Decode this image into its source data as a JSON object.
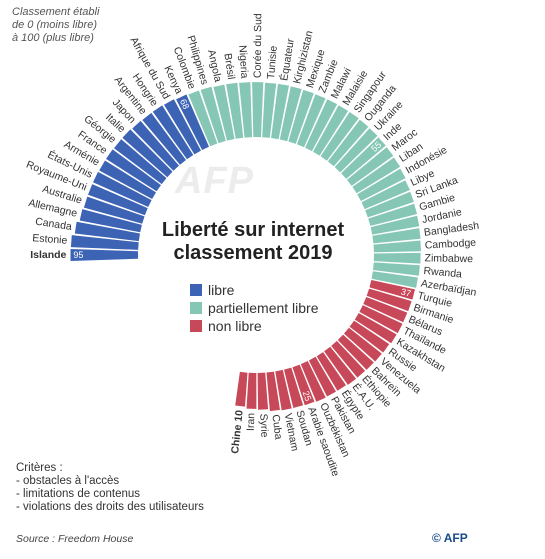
{
  "note": [
    "Classement établi",
    "de 0 (moins libre)",
    "à 100 (plus libre)"
  ],
  "chart_data": {
    "type": "bar",
    "layout": "radial",
    "title": "Liberté sur internet",
    "subtitle": "classement 2019",
    "ylim": [
      0,
      100
    ],
    "legend": [
      {
        "name": "libre",
        "color": "#3d63b5"
      },
      {
        "name": "partiellement libre",
        "color": "#85c7b4"
      },
      {
        "name": "non libre",
        "color": "#c74858"
      }
    ],
    "countries": [
      {
        "name": "Islande",
        "value": 95,
        "status": "libre",
        "label": "95",
        "bold": true
      },
      {
        "name": "Estonie",
        "value": 94,
        "status": "libre"
      },
      {
        "name": "Canada",
        "value": 87,
        "status": "libre"
      },
      {
        "name": "Allemagne",
        "value": 80,
        "status": "libre"
      },
      {
        "name": "Australie",
        "value": 77,
        "status": "libre"
      },
      {
        "name": "Royaume-Uni",
        "value": 77,
        "status": "libre"
      },
      {
        "name": "États-Unis",
        "value": 77,
        "status": "libre"
      },
      {
        "name": "Arménie",
        "value": 76,
        "status": "libre"
      },
      {
        "name": "France",
        "value": 76,
        "status": "libre"
      },
      {
        "name": "Géorgie",
        "value": 75,
        "status": "libre"
      },
      {
        "name": "Italie",
        "value": 75,
        "status": "libre"
      },
      {
        "name": "Japon",
        "value": 73,
        "status": "libre"
      },
      {
        "name": "Argentine",
        "value": 72,
        "status": "libre"
      },
      {
        "name": "Hongrie",
        "value": 72,
        "status": "libre"
      },
      {
        "name": "Afrique du Sud",
        "value": 71,
        "status": "libre"
      },
      {
        "name": "Kenya",
        "value": 68,
        "status": "libre",
        "label": "68"
      },
      {
        "name": "Colombie",
        "value": 66,
        "status": "partiellement libre"
      },
      {
        "name": "Philippines",
        "value": 66,
        "status": "partiellement libre"
      },
      {
        "name": "Angola",
        "value": 64,
        "status": "partiellement libre"
      },
      {
        "name": "Brésil",
        "value": 64,
        "status": "partiellement libre"
      },
      {
        "name": "Nigeria",
        "value": 63,
        "status": "partiellement libre"
      },
      {
        "name": "Corée du Sud",
        "value": 63,
        "status": "partiellement libre"
      },
      {
        "name": "Tunisie",
        "value": 62,
        "status": "partiellement libre"
      },
      {
        "name": "Équateur",
        "value": 62,
        "status": "partiellement libre"
      },
      {
        "name": "Kirghizistan",
        "value": 61,
        "status": "partiellement libre"
      },
      {
        "name": "Mexique",
        "value": 60,
        "status": "partiellement libre"
      },
      {
        "name": "Zambie",
        "value": 59,
        "status": "partiellement libre"
      },
      {
        "name": "Malawi",
        "value": 59,
        "status": "partiellement libre"
      },
      {
        "name": "Malaisie",
        "value": 58,
        "status": "partiellement libre"
      },
      {
        "name": "Singapour",
        "value": 58,
        "status": "partiellement libre"
      },
      {
        "name": "Ouganda",
        "value": 57,
        "status": "partiellement libre"
      },
      {
        "name": "Ukraine",
        "value": 56,
        "status": "partiellement libre"
      },
      {
        "name": "Inde",
        "value": 55,
        "status": "partiellement libre",
        "label": "55"
      },
      {
        "name": "Maroc",
        "value": 54,
        "status": "partiellement libre"
      },
      {
        "name": "Liban",
        "value": 53,
        "status": "partiellement libre"
      },
      {
        "name": "Indonésie",
        "value": 51,
        "status": "partiellement libre"
      },
      {
        "name": "Libye",
        "value": 48,
        "status": "partiellement libre"
      },
      {
        "name": "Sri Lanka",
        "value": 47,
        "status": "partiellement libre"
      },
      {
        "name": "Gambie",
        "value": 46,
        "status": "partiellement libre"
      },
      {
        "name": "Jordanie",
        "value": 45,
        "status": "partiellement libre"
      },
      {
        "name": "Bangladesh",
        "value": 44,
        "status": "partiellement libre"
      },
      {
        "name": "Cambodge",
        "value": 43,
        "status": "partiellement libre"
      },
      {
        "name": "Zimbabwe",
        "value": 42,
        "status": "partiellement libre"
      },
      {
        "name": "Rwanda",
        "value": 41,
        "status": "partiellement libre"
      },
      {
        "name": "Azerbaïdjan",
        "value": 39,
        "status": "partiellement libre"
      },
      {
        "name": "Turquie",
        "value": 37,
        "status": "non libre",
        "label": "37"
      },
      {
        "name": "Birmanie",
        "value": 36,
        "status": "non libre"
      },
      {
        "name": "Bélarus",
        "value": 35,
        "status": "non libre"
      },
      {
        "name": "Thaïlande",
        "value": 35,
        "status": "non libre"
      },
      {
        "name": "Kazakhstan",
        "value": 34,
        "status": "non libre"
      },
      {
        "name": "Russie",
        "value": 31,
        "status": "non libre"
      },
      {
        "name": "Venezuela",
        "value": 30,
        "status": "non libre"
      },
      {
        "name": "Bahreïn",
        "value": 29,
        "status": "non libre"
      },
      {
        "name": "Éthiopie",
        "value": 28,
        "status": "non libre"
      },
      {
        "name": "É.A.U.",
        "value": 28,
        "status": "non libre"
      },
      {
        "name": "Égypte",
        "value": 26,
        "status": "non libre"
      },
      {
        "name": "Pakistan",
        "value": 26,
        "status": "non libre"
      },
      {
        "name": "Ouzbékistan",
        "value": 27,
        "status": "non libre"
      },
      {
        "name": "Arabie saoudite",
        "value": 25,
        "status": "non libre",
        "label": "25"
      },
      {
        "name": "Soudan",
        "value": 24,
        "status": "non libre"
      },
      {
        "name": "Vietnam",
        "value": 24,
        "status": "non libre"
      },
      {
        "name": "Cuba",
        "value": 22,
        "status": "non libre"
      },
      {
        "name": "Syrie",
        "value": 17,
        "status": "non libre"
      },
      {
        "name": "Iran",
        "value": 15,
        "status": "non libre"
      },
      {
        "name": "Chine",
        "value": 10,
        "status": "non libre",
        "label": "10",
        "bold": true,
        "outside_label": true
      }
    ]
  },
  "watermark": "AFP",
  "criteria": {
    "title": "Critères :",
    "items": [
      "- obstacles à l'accès",
      "- limitations de contenus",
      "- violations des droits des utilisateurs"
    ]
  },
  "source": "Source : Freedom House",
  "credit": "© AFP"
}
